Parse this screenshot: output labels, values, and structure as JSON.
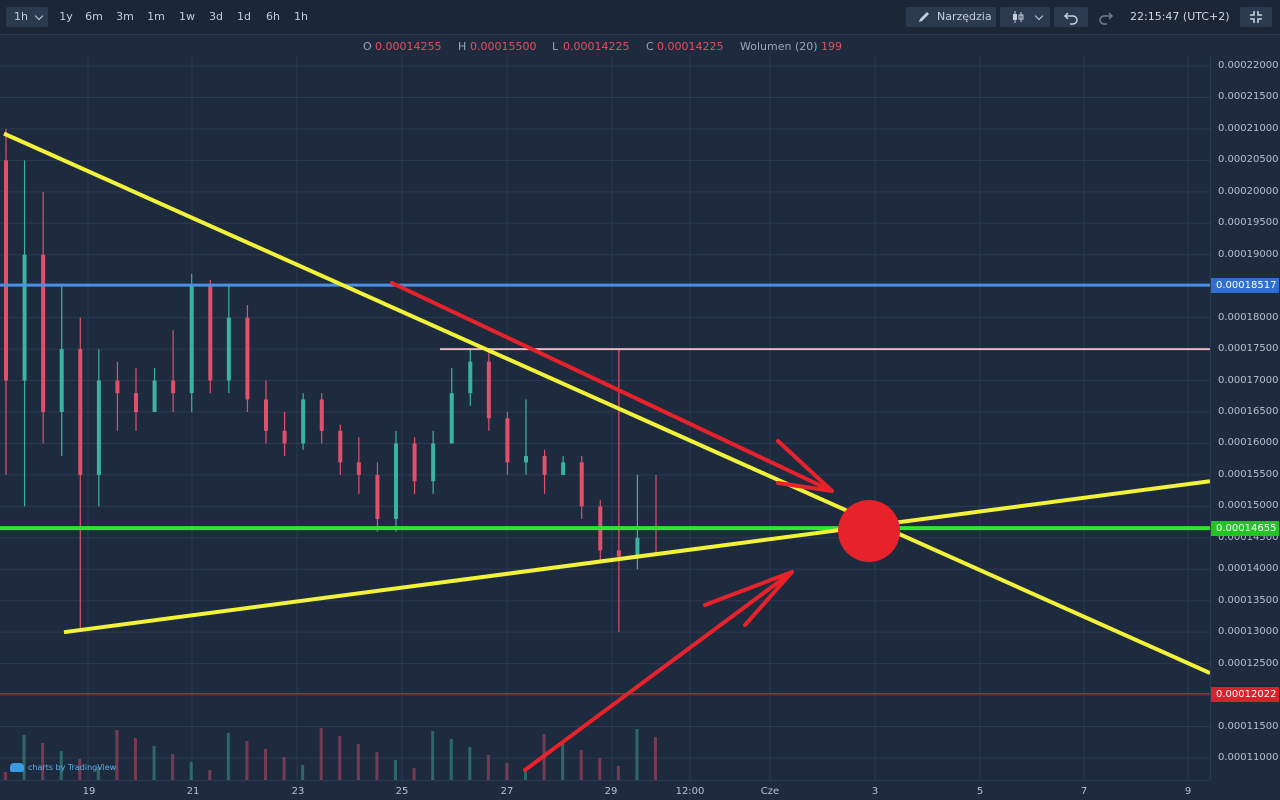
{
  "toolbar": {
    "interval": "1h",
    "ranges": [
      "1y",
      "6m",
      "3m",
      "1m",
      "1w",
      "3d",
      "1d",
      "6h",
      "1h"
    ],
    "tools_label": "Narzędzia",
    "clock": "22:15:47 (UTC+2)",
    "icons": [
      "chevron-down-icon",
      "pencil-icon",
      "candlestick-icon",
      "undo-icon",
      "redo-icon",
      "fullscreen-exit-icon"
    ]
  },
  "ohlc": {
    "o_label": "O",
    "o_value": "0.00014255",
    "h_label": "H",
    "h_value": "0.00015500",
    "l_label": "L",
    "l_value": "0.00014225",
    "c_label": "C",
    "c_value": "0.00014225",
    "vol_label": "Wolumen (20)",
    "vol_value": "199"
  },
  "price_axis": {
    "labels": [
      "0.00022000",
      "0.00021500",
      "0.00021000",
      "0.00020500",
      "0.00020000",
      "0.00019500",
      "0.00019000",
      "0.00018500",
      "0.00018000",
      "0.00017500",
      "0.00017000",
      "0.00016500",
      "0.00016000",
      "0.00015500",
      "0.00015000",
      "0.00014500",
      "0.00014000",
      "0.00013500",
      "0.00013000",
      "0.00012500",
      "0.00012000",
      "0.00011500",
      "0.00011000"
    ],
    "tag_blue": "0.00018517",
    "tag_green": "0.00014655",
    "tag_red": "0.00012022"
  },
  "time_axis": {
    "labels": [
      "19",
      "21",
      "23",
      "25",
      "27",
      "29",
      "12:00",
      "Cze",
      "3",
      "5",
      "7",
      "9"
    ]
  },
  "brand": "charts by TradingView",
  "colors": {
    "background": "#1e2b3f",
    "up": "#3bb3a0",
    "down": "#e0506b",
    "support_line": "#2ee82e",
    "resistance_line": "#4a90e2",
    "trend_lines": "#f2f23a",
    "annotation": "#e8222b"
  },
  "chart_data": {
    "type": "candlestick",
    "interval": "1h",
    "y_range": [
      0.000107,
      0.0002215
    ],
    "x_labels": [
      "19",
      "21",
      "23",
      "25",
      "27",
      "29",
      "12:00",
      "Cze",
      "3",
      "5",
      "7",
      "9"
    ],
    "last_price": {
      "open": 0.00014255,
      "high": 0.000155,
      "low": 0.00014225,
      "close": 0.00014225,
      "volume_20": 199
    },
    "horizontal_levels": [
      {
        "price": 0.00018517,
        "color": "blue"
      },
      {
        "price": 0.00014655,
        "color": "green"
      },
      {
        "price": 0.00012022,
        "color": "red"
      },
      {
        "price": 0.000175,
        "color": "pink"
      }
    ],
    "trend_lines": [
      {
        "from": [
          "19",
          0.00020925
        ],
        "to": [
          "9",
          0.0001235
        ],
        "color": "yellow"
      },
      {
        "from": [
          "19",
          0.00013
        ],
        "to": [
          "9",
          0.000154
        ],
        "color": "yellow"
      }
    ],
    "annotation": "triangle convergence marker with red arrows",
    "candles": [
      [
        0.000205,
        0.00021,
        0.000155,
        0.00017
      ],
      [
        0.00017,
        0.000205,
        0.00015,
        0.00019
      ],
      [
        0.00019,
        0.0002,
        0.00016,
        0.000165
      ],
      [
        0.000165,
        0.000185,
        0.000158,
        0.000175
      ],
      [
        0.000175,
        0.00018,
        0.00013,
        0.000155
      ],
      [
        0.000155,
        0.000175,
        0.00015,
        0.00017
      ],
      [
        0.00017,
        0.000173,
        0.000162,
        0.000168
      ],
      [
        0.000168,
        0.000172,
        0.000162,
        0.000165
      ],
      [
        0.000165,
        0.000172,
        0.000165,
        0.00017
      ],
      [
        0.00017,
        0.000178,
        0.000165,
        0.000168
      ],
      [
        0.000168,
        0.000187,
        0.000165,
        0.000185
      ],
      [
        0.000185,
        0.000186,
        0.000168,
        0.00017
      ],
      [
        0.00017,
        0.000185,
        0.000168,
        0.00018
      ],
      [
        0.00018,
        0.000182,
        0.000165,
        0.000167
      ],
      [
        0.000167,
        0.00017,
        0.00016,
        0.000162
      ],
      [
        0.000162,
        0.000165,
        0.000158,
        0.00016
      ],
      [
        0.00016,
        0.000168,
        0.000159,
        0.000167
      ],
      [
        0.000167,
        0.000168,
        0.00016,
        0.000162
      ],
      [
        0.000162,
        0.000163,
        0.000155,
        0.000157
      ],
      [
        0.000157,
        0.000161,
        0.000152,
        0.000155
      ],
      [
        0.000155,
        0.000157,
        0.000146,
        0.000148
      ],
      [
        0.000148,
        0.000162,
        0.000146,
        0.00016
      ],
      [
        0.00016,
        0.000161,
        0.000152,
        0.000154
      ],
      [
        0.000154,
        0.000162,
        0.000152,
        0.00016
      ],
      [
        0.00016,
        0.000172,
        0.00016,
        0.000168
      ],
      [
        0.000168,
        0.000175,
        0.000166,
        0.000173
      ],
      [
        0.000173,
        0.000175,
        0.000162,
        0.000164
      ],
      [
        0.000164,
        0.000165,
        0.000155,
        0.000157
      ],
      [
        0.000157,
        0.000167,
        0.000155,
        0.000158
      ],
      [
        0.000158,
        0.000159,
        0.000152,
        0.000155
      ],
      [
        0.000155,
        0.000158,
        0.000155,
        0.000157
      ],
      [
        0.000157,
        0.000158,
        0.000148,
        0.00015
      ],
      [
        0.00015,
        0.000151,
        0.000141,
        0.000143
      ],
      [
        0.000143,
        0.000175,
        0.00013,
        0.000142
      ],
      [
        0.000142,
        0.000155,
        0.00014,
        0.000145
      ],
      [
        0.00014255,
        0.000155,
        0.00014225,
        0.00014225
      ]
    ]
  }
}
